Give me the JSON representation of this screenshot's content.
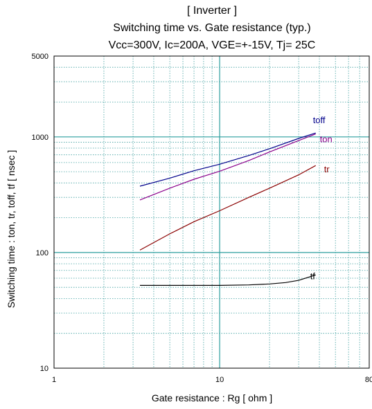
{
  "chart_data": {
    "type": "line",
    "title": [
      "[ Inverter ]",
      "Switching time  vs.  Gate resistance  (typ.)",
      "Vcc=300V, Ic=200A, VGE=+-15V, Tj= 25C"
    ],
    "xlabel": "Gate resistance  :  Rg  [ ohm ]",
    "ylabel": "Switching time  :  ton, tr, toff, tf   [ nsec ]",
    "x_scale": "log",
    "y_scale": "log",
    "xlim": [
      1,
      80
    ],
    "ylim": [
      10,
      5000
    ],
    "x_ticks": [
      {
        "value": 1,
        "label": "1"
      },
      {
        "value": 10,
        "label": "10"
      },
      {
        "value": 80,
        "label": "80"
      }
    ],
    "y_ticks": [
      {
        "value": 10,
        "label": "10"
      },
      {
        "value": 100,
        "label": "100"
      },
      {
        "value": 1000,
        "label": "1000"
      },
      {
        "value": 5000,
        "label": "5000"
      }
    ],
    "grid": true,
    "series": [
      {
        "name": "toff",
        "color": "#00008b",
        "x": [
          3.3,
          5,
          7,
          10,
          15,
          20,
          30,
          38
        ],
        "y": [
          375,
          440,
          510,
          580,
          690,
          790,
          970,
          1080
        ]
      },
      {
        "name": "ton",
        "color": "#8b008b",
        "x": [
          3.3,
          5,
          7,
          10,
          15,
          20,
          30,
          38
        ],
        "y": [
          285,
          360,
          430,
          505,
          625,
          740,
          930,
          1060
        ]
      },
      {
        "name": "tr",
        "color": "#8b0000",
        "x": [
          3.3,
          5,
          7,
          10,
          15,
          20,
          30,
          38
        ],
        "y": [
          105,
          145,
          185,
          230,
          300,
          360,
          470,
          565
        ]
      },
      {
        "name": "tf",
        "color": "#000000",
        "x": [
          3.3,
          5,
          7,
          10,
          15,
          20,
          25,
          30,
          38
        ],
        "y": [
          52,
          52,
          52,
          52,
          52.5,
          53.5,
          55,
          57.5,
          64
        ]
      }
    ]
  }
}
